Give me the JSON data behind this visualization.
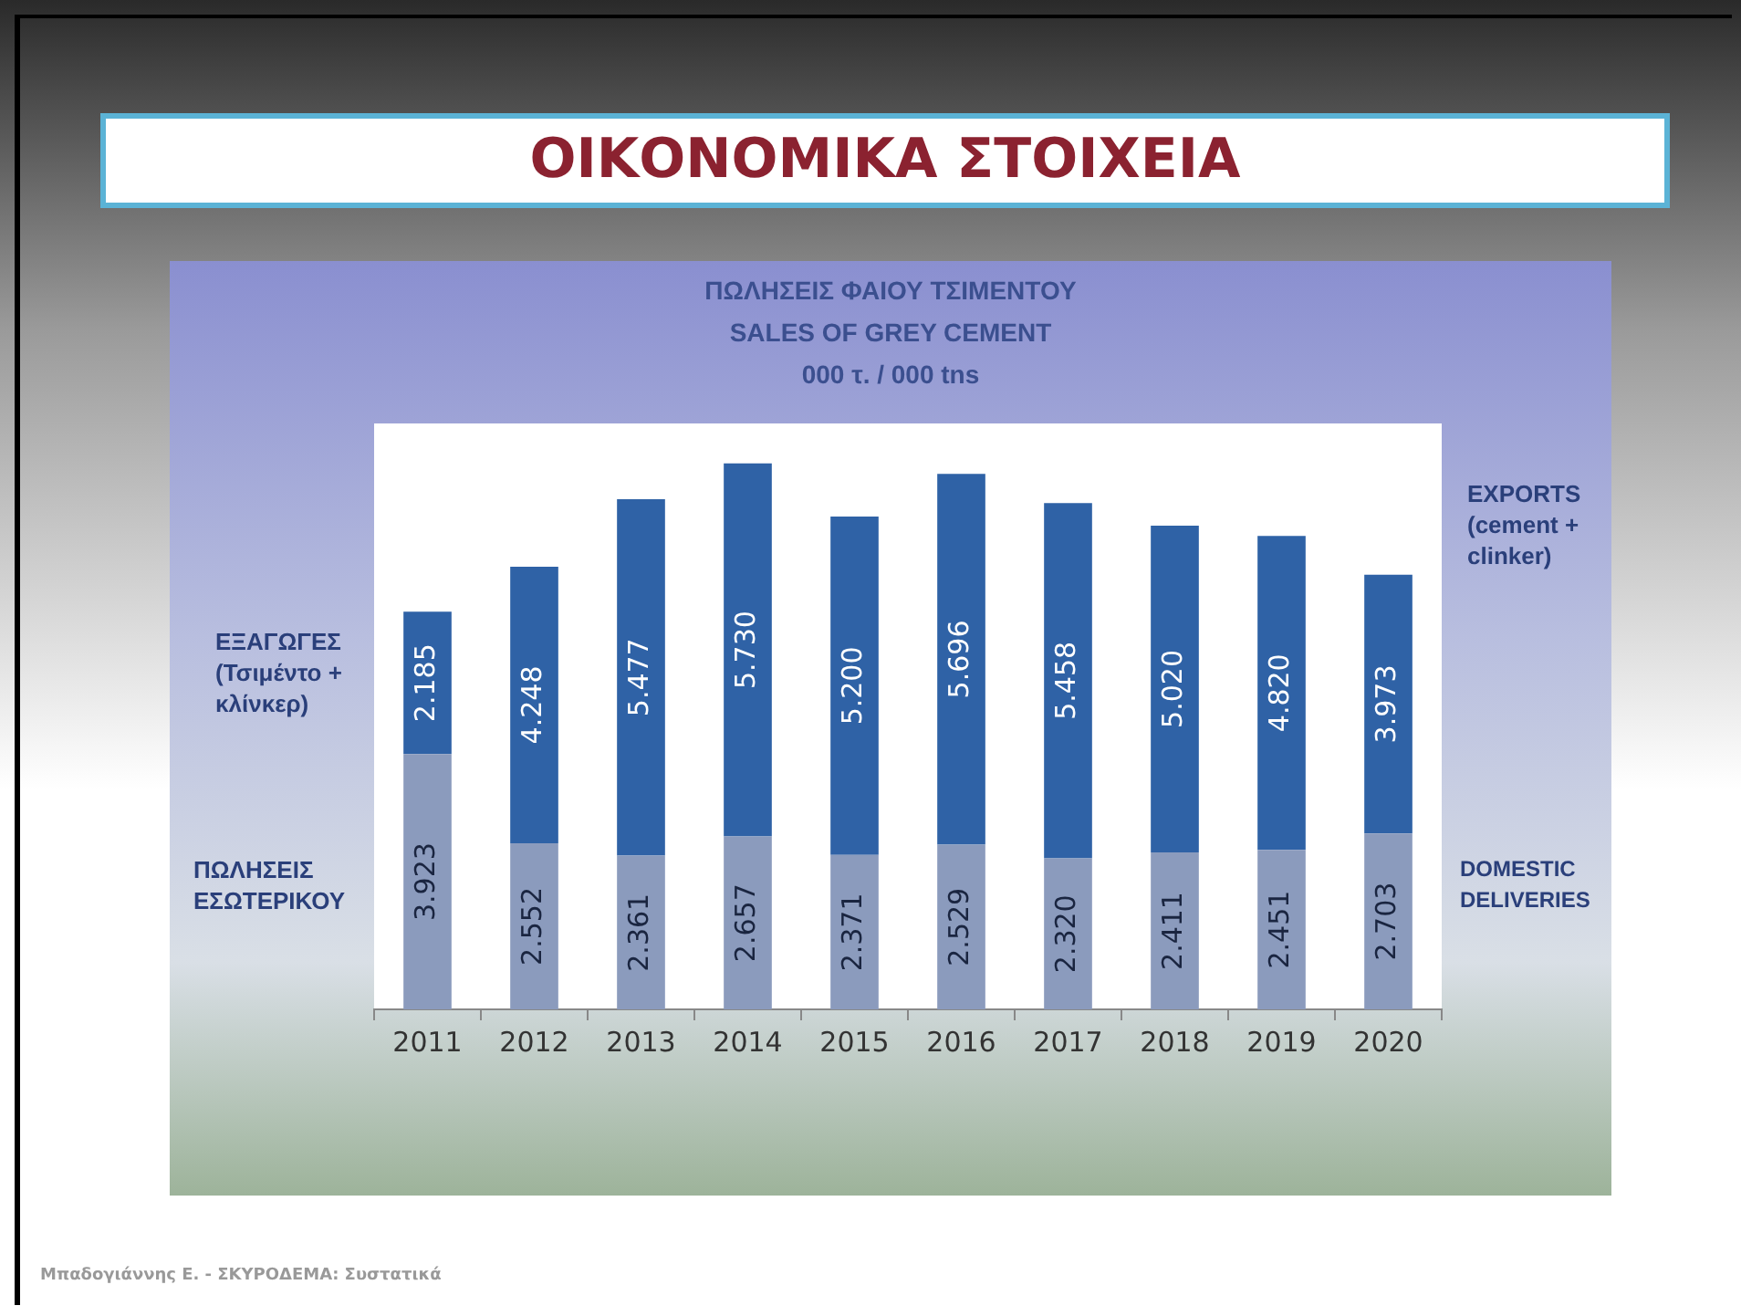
{
  "chart_data": {
    "type": "bar",
    "title": "ΟΙΚΟΝΟΜΙΚΑ ΣΤΟΙΧΕΙΑ",
    "subtitle": "ΠΩΛΗΣΕΙΣ ΦΑΙΟΥ ΤΣΙΜΕΝΤΟΥ\nSALES OF GREY CEMENT\n000 τ. / 000 tns",
    "categories": [
      "2011",
      "2012",
      "2013",
      "2014",
      "2015",
      "2016",
      "2017",
      "2018",
      "2019",
      "2020"
    ],
    "stacked": true,
    "tick_labels": "x",
    "grid": false,
    "legend": false,
    "series": [
      {
        "name": "ΠΩΛΗΣΕΙΣ ΕΣΩΤΕΡΙΚΟΥ",
        "color": "#8b9bbd",
        "values": [
          3923,
          2552,
          2361,
          2657,
          2371,
          2529,
          2320,
          2411,
          2451,
          2703
        ],
        "value_labels": [
          "3.923",
          "2.552",
          "2.361",
          "2.657",
          "2.371",
          "2.529",
          "2.320",
          "2.411",
          "2.451",
          "2.703"
        ]
      },
      {
        "name": "ΕΞΑΓΩΓΕΣ (Τσιμέντο + κλίνκερ)",
        "color": "#2f62a6",
        "values": [
          2185,
          4248,
          5477,
          5730,
          5200,
          5696,
          5458,
          5020,
          4820,
          3973
        ],
        "value_labels": [
          "2.185",
          "4.248",
          "5.477",
          "5.730",
          "5.200",
          "5.696",
          "5.458",
          "5.020",
          "4.820",
          "3.973"
        ]
      }
    ],
    "annotations": [
      "EXPORTS (cement + clinker)",
      "DOMESTIC DELIVERIES",
      "Μπαδογιάννης Ε. - ΣΚΥΡΟΔΕΜΑ: Συστατικά"
    ]
  }
}
